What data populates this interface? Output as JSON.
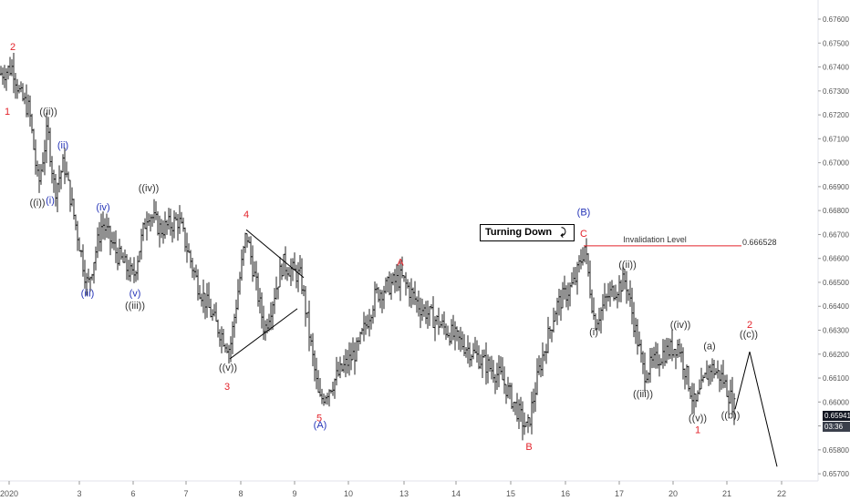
{
  "chart_data": {
    "type": "ohlc",
    "y_ticks": [
      "0.67600",
      "0.67500",
      "0.67400",
      "0.67300",
      "0.67200",
      "0.67100",
      "0.67000",
      "0.66900",
      "0.66800",
      "0.66700",
      "0.66600",
      "0.66500",
      "0.66400",
      "0.66300",
      "0.66200",
      "0.66100",
      "0.66000",
      "0.65900",
      "0.65800",
      "0.65700"
    ],
    "ylim": [
      0.6567,
      0.6768
    ],
    "x_ticks": [
      "2020",
      "3",
      "6",
      "7",
      "8",
      "9",
      "10",
      "13",
      "14",
      "15",
      "16",
      "17",
      "20",
      "21",
      "22"
    ],
    "last_price": "0.65941",
    "countdown": "03:36",
    "price_path": [
      [
        0,
        0.6737
      ],
      [
        14,
        0.674
      ],
      [
        22,
        0.6728
      ],
      [
        32,
        0.6722
      ],
      [
        42,
        0.669
      ],
      [
        52,
        0.6714
      ],
      [
        60,
        0.6688
      ],
      [
        70,
        0.67
      ],
      [
        82,
        0.6676
      ],
      [
        96,
        0.6648
      ],
      [
        112,
        0.6675
      ],
      [
        128,
        0.6662
      ],
      [
        146,
        0.6652
      ],
      [
        162,
        0.668
      ],
      [
        176,
        0.6672
      ],
      [
        196,
        0.6676
      ],
      [
        216,
        0.665
      ],
      [
        236,
        0.6633
      ],
      [
        252,
        0.6622
      ],
      [
        270,
        0.6671
      ],
      [
        290,
        0.663
      ],
      [
        310,
        0.6658
      ],
      [
        330,
        0.6652
      ],
      [
        350,
        0.66
      ],
      [
        372,
        0.6612
      ],
      [
        392,
        0.6622
      ],
      [
        412,
        0.6645
      ],
      [
        440,
        0.6652
      ],
      [
        460,
        0.664
      ],
      [
        490,
        0.663
      ],
      [
        520,
        0.662
      ],
      [
        550,
        0.661
      ],
      [
        578,
        0.6588
      ],
      [
        592,
        0.6615
      ],
      [
        610,
        0.664
      ],
      [
        630,
        0.665
      ],
      [
        641,
        0.6665
      ],
      [
        652,
        0.6633
      ],
      [
        668,
        0.6645
      ],
      [
        686,
        0.6651
      ],
      [
        706,
        0.6612
      ],
      [
        726,
        0.662
      ],
      [
        744,
        0.6624
      ],
      [
        762,
        0.6598
      ],
      [
        778,
        0.6615
      ],
      [
        792,
        0.661
      ],
      [
        806,
        0.6597
      ]
    ],
    "projection": [
      [
        806,
        0.6597
      ],
      [
        822,
        0.6621
      ],
      [
        852,
        0.6573
      ]
    ],
    "annotations": {
      "wave_labels": [
        {
          "text": "1",
          "x": 8,
          "price": 0.672,
          "color": "#e3232b"
        },
        {
          "text": "2",
          "x": 14,
          "price": 0.6747,
          "color": "#e3232b"
        },
        {
          "text": "((i))",
          "x": 41,
          "price": 0.6682,
          "color": "#333333"
        },
        {
          "text": "(i)",
          "x": 55,
          "price": 0.6683,
          "color": "#2736b8"
        },
        {
          "text": "((ii))",
          "x": 53,
          "price": 0.672,
          "color": "#333333"
        },
        {
          "text": "(ii)",
          "x": 69,
          "price": 0.6706,
          "color": "#2736b8"
        },
        {
          "text": "(iii)",
          "x": 96,
          "price": 0.6644,
          "color": "#2736b8"
        },
        {
          "text": "(iv)",
          "x": 113,
          "price": 0.668,
          "color": "#2736b8"
        },
        {
          "text": "(v)",
          "x": 148,
          "price": 0.6644,
          "color": "#2736b8"
        },
        {
          "text": "((iii))",
          "x": 148,
          "price": 0.6639,
          "color": "#333333"
        },
        {
          "text": "((iv))",
          "x": 163,
          "price": 0.6688,
          "color": "#333333"
        },
        {
          "text": "4",
          "x": 270,
          "price": 0.6677,
          "color": "#e3232b"
        },
        {
          "text": "((v))",
          "x": 250,
          "price": 0.6613,
          "color": "#333333"
        },
        {
          "text": "3",
          "x": 249,
          "price": 0.6605,
          "color": "#e3232b"
        },
        {
          "text": "5",
          "x": 350,
          "price": 0.6592,
          "color": "#e3232b"
        },
        {
          "text": "(A)",
          "x": 351,
          "price": 0.6589,
          "color": "#2736b8"
        },
        {
          "text": "A",
          "x": 439,
          "price": 0.6657,
          "color": "#e3232b"
        },
        {
          "text": "B",
          "x": 580,
          "price": 0.658,
          "color": "#e3232b"
        },
        {
          "text": "(B)",
          "x": 640,
          "price": 0.6678,
          "color": "#2736b8"
        },
        {
          "text": "C",
          "x": 640,
          "price": 0.6669,
          "color": "#e3232b"
        },
        {
          "text": "((ii))",
          "x": 688,
          "price": 0.6656,
          "color": "#333333"
        },
        {
          "text": "(i)",
          "x": 651,
          "price": 0.6628,
          "color": "#333333"
        },
        {
          "text": "((iii))",
          "x": 705,
          "price": 0.6602,
          "color": "#333333"
        },
        {
          "text": "((iv))",
          "x": 746,
          "price": 0.6631,
          "color": "#333333"
        },
        {
          "text": "(a)",
          "x": 778,
          "price": 0.6622,
          "color": "#333333"
        },
        {
          "text": "((v))",
          "x": 765,
          "price": 0.6592,
          "color": "#333333"
        },
        {
          "text": "((b))",
          "x": 801,
          "price": 0.6593,
          "color": "#333333"
        },
        {
          "text": "1",
          "x": 765,
          "price": 0.6587,
          "color": "#e3232b"
        },
        {
          "text": "2",
          "x": 822,
          "price": 0.6631,
          "color": "#e3232b"
        },
        {
          "text": "((c))",
          "x": 821,
          "price": 0.6627,
          "color": "#333333"
        }
      ],
      "invalidation": {
        "label": "Invalidation Level",
        "value_label": "0.666528",
        "price": 0.666528,
        "x_start": 640,
        "x_end": 813
      },
      "triangle": [
        [
          [
            270,
            0.6672
          ],
          [
            333,
            0.6652
          ]
        ],
        [
          [
            252,
            0.6618
          ],
          [
            326,
            0.6639
          ]
        ]
      ],
      "callout": "Turning Down",
      "callout_icon": "trend-down-arrow-icon"
    },
    "colors": {
      "red": "#e3232b",
      "blue": "#2736b8",
      "candle": "#222222",
      "axis_text": "#555555",
      "badge": "#131722"
    }
  }
}
